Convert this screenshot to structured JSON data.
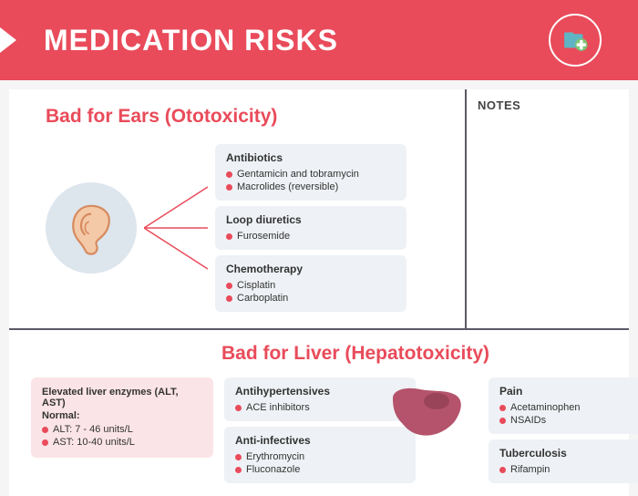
{
  "header": {
    "title": "MEDICATION RISKS"
  },
  "colors": {
    "accent": "#e94b5a",
    "card_bg": "#eef1f5",
    "pink_bg": "#fbe4e7",
    "icon_bg": "#dde5ed",
    "divider": "#5a5a66"
  },
  "notes": {
    "title": "NOTES"
  },
  "ototoxicity": {
    "title": "Bad for Ears (Ototoxicity)",
    "cards": [
      {
        "title": "Antibiotics",
        "items": [
          "Gentamicin and tobramycin",
          "Macrolides (reversible)"
        ]
      },
      {
        "title": "Loop diuretics",
        "items": [
          "Furosemide"
        ]
      },
      {
        "title": "Chemotherapy",
        "items": [
          "Cisplatin",
          "Carboplatin"
        ]
      }
    ]
  },
  "hepatotoxicity": {
    "title": "Bad for Liver (Hepatotoxicity)",
    "enzyme_card": {
      "title": "Elevated liver enzymes (ALT, AST)",
      "subtitle": "Normal:",
      "items": [
        "ALT: 7 - 46 units/L",
        "AST: 10-40 units/L"
      ]
    },
    "left_cards": [
      {
        "title": "Antihypertensives",
        "items": [
          "ACE inhibitors"
        ]
      },
      {
        "title": "Anti-infectives",
        "items": [
          "Erythromycin",
          "Fluconazole"
        ]
      }
    ],
    "right_cards": [
      {
        "title": "Pain",
        "items": [
          "Acetaminophen",
          "NSAIDs"
        ]
      },
      {
        "title": "Tuberculosis",
        "items": [
          "Rifampin"
        ]
      }
    ]
  }
}
